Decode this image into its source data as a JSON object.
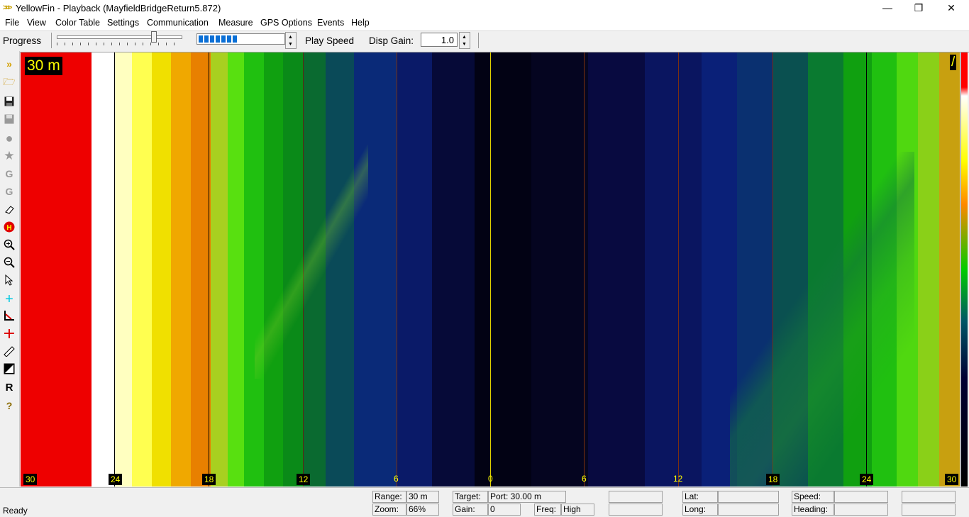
{
  "window": {
    "title": "YellowFin - Playback (MayfieldBridgeReturn5.872)",
    "minimize": "—",
    "maximize": "❐",
    "close": "✕"
  },
  "menu": [
    "File",
    "View",
    "Color Table",
    "Settings",
    "Communication",
    "Measure",
    "GPS Options",
    "Events",
    "Help"
  ],
  "toolbar": {
    "progress_label": "Progress",
    "play_speed_label": "Play Speed",
    "play_speed_level": 0.45,
    "disp_gain_label": "Disp Gain:",
    "disp_gain_value": "1.0"
  },
  "sonar": {
    "range_label": "30 m",
    "corner_label": "/",
    "scale": [
      "30",
      "24",
      "18",
      "12",
      "6",
      "0",
      "6",
      "12",
      "18",
      "24",
      "30"
    ]
  },
  "status": {
    "ready": "Ready",
    "range_label": "Range:",
    "range_value": "30 m",
    "zoom_label": "Zoom:",
    "zoom_value": "66%",
    "target_label": "Target:",
    "target_value": "Port: 30.00 m",
    "gain_label": "Gain:",
    "gain_value": "0",
    "freq_label": "Freq:",
    "freq_value": "High",
    "lat_label": "Lat:",
    "lat_value": "",
    "long_label": "Long:",
    "long_value": "",
    "speed_label": "Speed:",
    "speed_value": "",
    "heading_label": "Heading:",
    "heading_value": ""
  },
  "colors": {
    "port_outer": "#ee0000",
    "centerline": "#e0d000",
    "scale_text": "#ffff00"
  },
  "tools": [
    "forward-icon",
    "open-folder-icon",
    "save-icon",
    "save-disabled-icon",
    "balloon-icon",
    "star-icon",
    "gain-g-icon",
    "gain-g2-icon",
    "eraser-icon",
    "h-marker-icon",
    "zoom-in-icon",
    "zoom-out-icon",
    "pointer-icon",
    "crosshair-icon",
    "angle-icon",
    "distance-icon",
    "ruler-icon",
    "contrast-icon",
    "r-icon",
    "help-icon"
  ]
}
